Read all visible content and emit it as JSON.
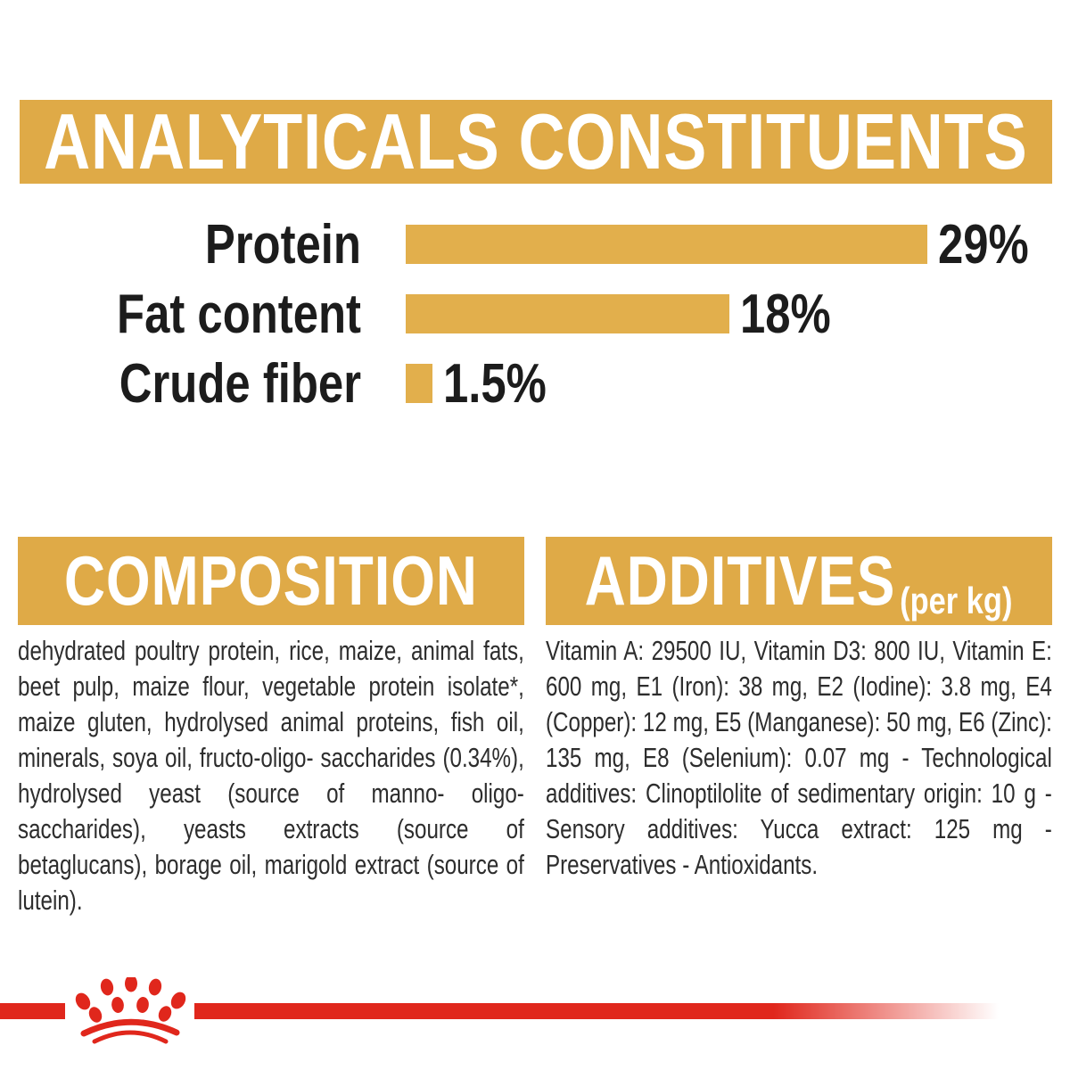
{
  "colors": {
    "gold": "#dfaa47",
    "bar_gold": "#e2af4c",
    "brand_red": "#e0271c",
    "heading_text": "#ffffff",
    "label_text": "#1c1c1c",
    "body_text": "#2d2d2d"
  },
  "analyticals": {
    "title": "ANALYTICALS CONSTITUENTS"
  },
  "chart_data": {
    "type": "bar",
    "orientation": "horizontal",
    "title": "ANALYTICALS CONSTITUENTS",
    "categories": [
      "Protein",
      "Fat content",
      "Crude fiber"
    ],
    "values": [
      29,
      18,
      1.5
    ],
    "value_labels": [
      "29%",
      "18%",
      "1.5%"
    ],
    "unit": "%",
    "xlim": [
      0,
      29
    ],
    "bar_color": "#e2af4c",
    "grid": false,
    "legend": false
  },
  "composition": {
    "title": "COMPOSITION",
    "body": "dehydrated poultry protein, rice, maize, animal fats, beet pulp, maize flour, vegetable protein isolate*, maize gluten, hydrolysed animal proteins, fish oil, minerals, soya oil, fructo-oligo- saccharides (0.34%), hydrolysed yeast (source of manno- oligo-saccharides), yeasts extracts (source of betaglucans), borage oil, marigold extract (source of lutein)."
  },
  "additives": {
    "title": "ADDITIVES",
    "unit_label": "(per kg)",
    "body": "Vitamin A: 29500 IU, Vitamin D3: 800 IU, Vitamin E: 600 mg, E1 (Iron): 38 mg, E2 (Iodine): 3.8 mg, E4 (Copper): 12 mg, E5 (Manganese): 50 mg, E6 (Zinc): 135 mg, E8 (Selenium): 0.07 mg - Technological additives: Clinoptilolite of sedimentary origin: 10 g - Sensory additives: Yucca extract: 125 mg - Preservatives - Antioxidants."
  },
  "footer": {
    "logo": "royal-canin-crown"
  }
}
